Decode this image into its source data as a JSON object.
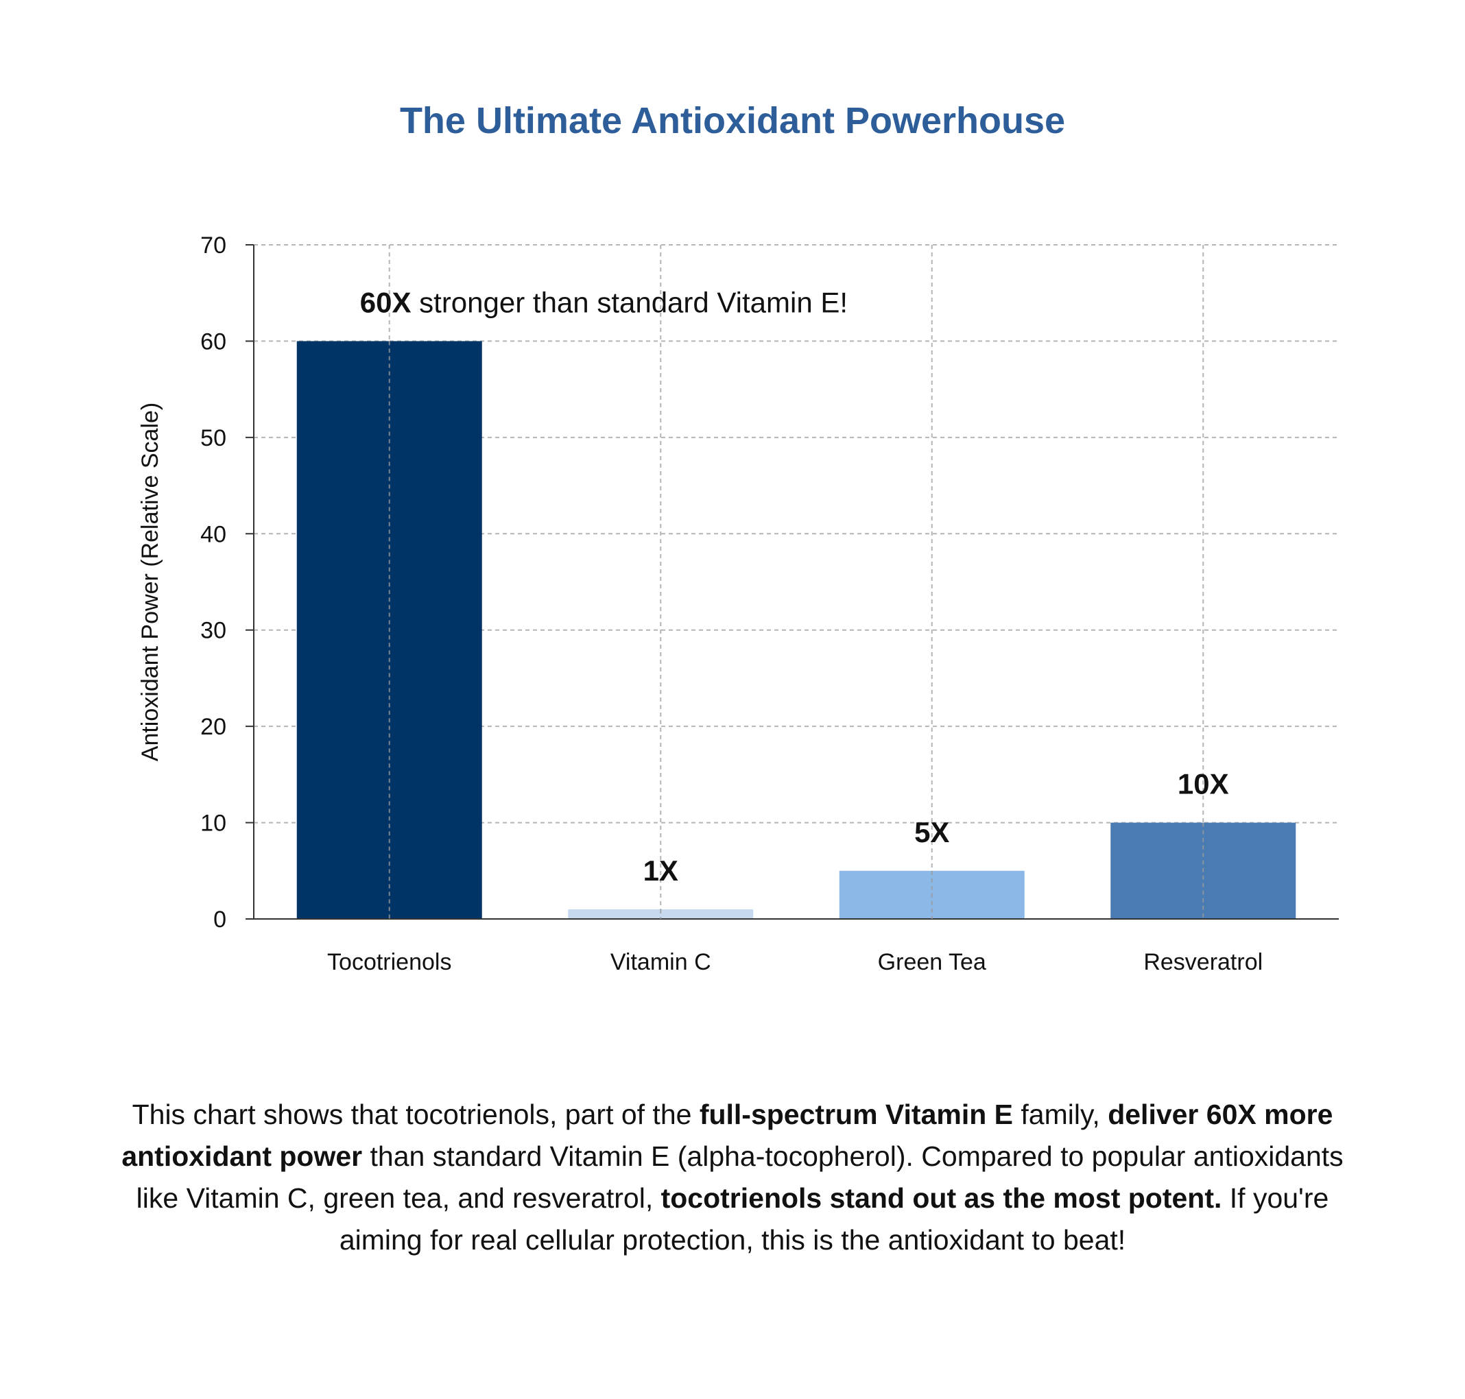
{
  "chart_data": {
    "type": "bar",
    "title": "The Ultimate Antioxidant Powerhouse",
    "xlabel": "",
    "ylabel": "Antioxidant Power (Relative Scale)",
    "categories": [
      "Tocotrienols",
      "Vitamin C",
      "Green Tea",
      "Resveratrol"
    ],
    "values": [
      60,
      1,
      5,
      10
    ],
    "colors": [
      "#003366",
      "#c6d9ef",
      "#8bb8e6",
      "#4a7cb3"
    ],
    "ylim": [
      0,
      70
    ],
    "yticks": [
      0,
      10,
      20,
      30,
      40,
      50,
      60,
      70
    ],
    "grid": true,
    "bar_labels": [
      "60X",
      "1X",
      "5X",
      "10X"
    ],
    "annotation": {
      "bold": "60X",
      "text": "stronger than standard Vitamin E!"
    }
  },
  "caption": {
    "p1": "This chart shows that tocotrienols, part of the ",
    "b1": "full-spectrum Vitamin E",
    "p2": " family, ",
    "b2": "deliver 60X more antioxidant power",
    "p3": " than standard Vitamin E (alpha-tocopherol). Compared to popular antioxidants like Vitamin C, green tea, and resveratrol, ",
    "b3": "tocotrienols stand out as the most potent.",
    "p4": " If you're aiming for real cellular protection, this is the antioxidant to beat!"
  }
}
